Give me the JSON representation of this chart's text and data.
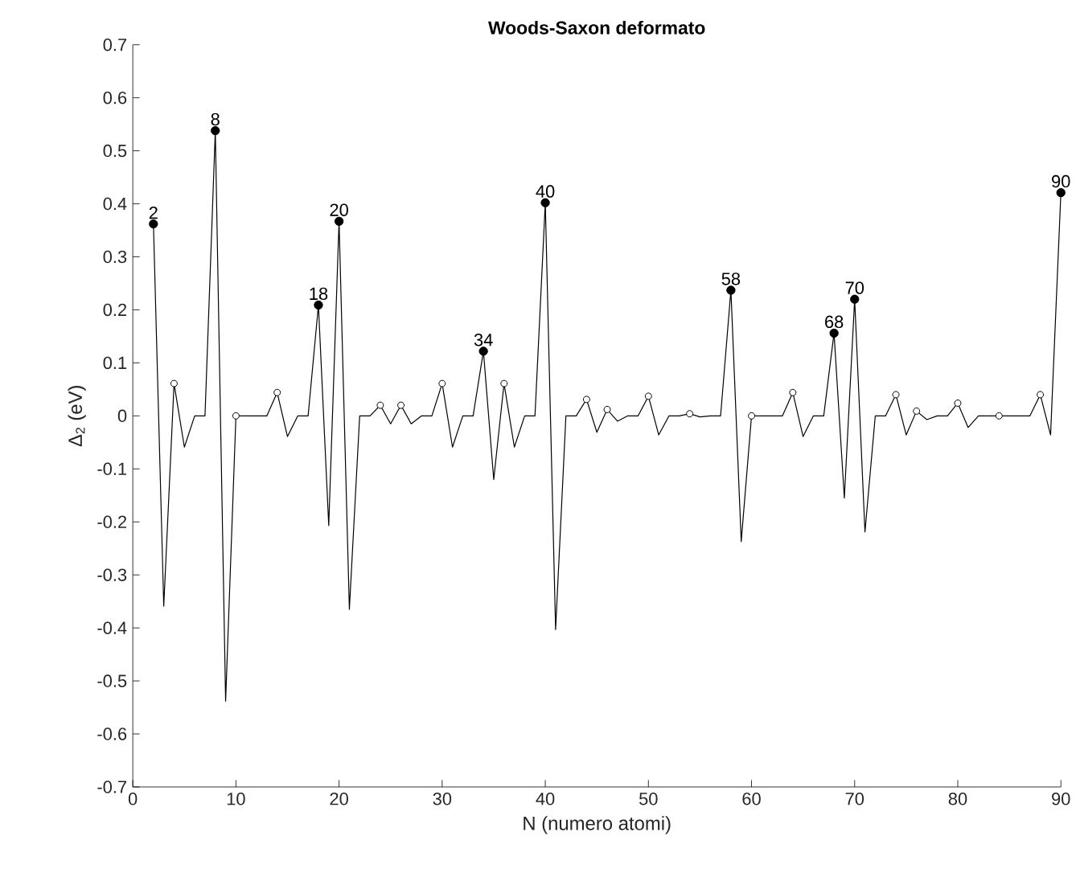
{
  "chart_data": {
    "type": "line",
    "title": "Woods-Saxon deformato",
    "xlabel": "N (numero atomi)",
    "ylabel": "Δ$_{2}$ (eV)",
    "xlim": [
      0,
      90
    ],
    "xticks": [
      0,
      10,
      20,
      30,
      40,
      50,
      60,
      70,
      80,
      90
    ],
    "ylim": [
      -0.7,
      0.7
    ],
    "yticks": [
      -0.7,
      -0.6,
      -0.5,
      -0.4,
      -0.3,
      -0.2,
      -0.1,
      0,
      0.1,
      0.2,
      0.3,
      0.4,
      0.5,
      0.6,
      0.7
    ],
    "series": [
      {
        "color": "#000000",
        "marker": "none",
        "x": [
          2,
          3,
          4,
          5,
          6,
          7,
          8,
          9,
          10,
          11,
          12,
          13,
          14,
          15,
          16,
          17,
          18,
          19,
          20,
          21,
          22,
          23,
          24,
          25,
          26,
          27,
          28,
          29,
          30,
          31,
          32,
          33,
          34,
          35,
          36,
          37,
          38,
          39,
          40,
          41,
          42,
          43,
          44,
          45,
          46,
          47,
          48,
          49,
          50,
          51,
          52,
          53,
          54,
          55,
          56,
          57,
          58,
          59,
          60,
          61,
          62,
          63,
          64,
          65,
          66,
          67,
          68,
          69,
          70,
          71,
          72,
          73,
          74,
          75,
          76,
          77,
          78,
          79,
          80,
          81,
          82,
          83,
          84,
          85,
          86,
          87,
          88,
          89,
          90
        ],
        "values": [
          0.362,
          -0.359,
          0.061,
          -0.059,
          0,
          0,
          0.538,
          -0.538,
          0,
          0,
          0,
          0,
          0.044,
          -0.039,
          0,
          0,
          0.209,
          -0.207,
          0.367,
          -0.365,
          0,
          0,
          0.02,
          -0.015,
          0.02,
          -0.015,
          0,
          0,
          0.061,
          -0.059,
          0,
          0,
          0.122,
          -0.12,
          0.061,
          -0.059,
          0,
          0,
          0.402,
          -0.403,
          0,
          0,
          0.031,
          -0.031,
          0.012,
          -0.01,
          0,
          0,
          0.037,
          -0.036,
          0,
          0,
          0.004,
          -0.002,
          0,
          0,
          0.237,
          -0.237,
          0,
          0,
          0,
          0,
          0.044,
          -0.039,
          0,
          0,
          0.156,
          -0.155,
          0.22,
          -0.219,
          0,
          0,
          0.04,
          -0.036,
          0.009,
          -0.007,
          0,
          0,
          0.024,
          -0.022,
          0,
          0,
          0,
          0,
          0,
          0,
          0.04,
          -0.036,
          0.421
        ]
      },
      {
        "type": "scatter",
        "color": "#ffffff",
        "marker": "circle",
        "x": [
          4,
          10,
          14,
          24,
          26,
          30,
          36,
          44,
          46,
          50,
          54,
          60,
          64,
          74,
          76,
          80,
          84,
          88
        ],
        "values": [
          0.061,
          0,
          0.044,
          0.02,
          0.02,
          0.061,
          0.061,
          0.031,
          0.012,
          0.037,
          0.004,
          0,
          0.044,
          0.04,
          0.009,
          0.024,
          0,
          0.04
        ]
      },
      {
        "type": "scatter",
        "color": "#000000",
        "marker": "circle",
        "x": [
          2,
          8,
          18,
          20,
          34,
          40,
          58,
          68,
          70,
          90
        ],
        "values": [
          0.362,
          0.538,
          0.209,
          0.367,
          0.122,
          0.402,
          0.237,
          0.156,
          0.22,
          0.421
        ]
      }
    ],
    "annotations": [
      {
        "text": "2",
        "x": 2,
        "y": 0.362
      },
      {
        "text": "8",
        "x": 8,
        "y": 0.538
      },
      {
        "text": "18",
        "x": 18,
        "y": 0.209
      },
      {
        "text": "20",
        "x": 20,
        "y": 0.367
      },
      {
        "text": "34",
        "x": 34,
        "y": 0.122
      },
      {
        "text": "40",
        "x": 40,
        "y": 0.402
      },
      {
        "text": "58",
        "x": 58,
        "y": 0.237
      },
      {
        "text": "68",
        "x": 68,
        "y": 0.156
      },
      {
        "text": "70",
        "x": 70,
        "y": 0.22
      },
      {
        "text": "90",
        "x": 90,
        "y": 0.421
      }
    ]
  }
}
